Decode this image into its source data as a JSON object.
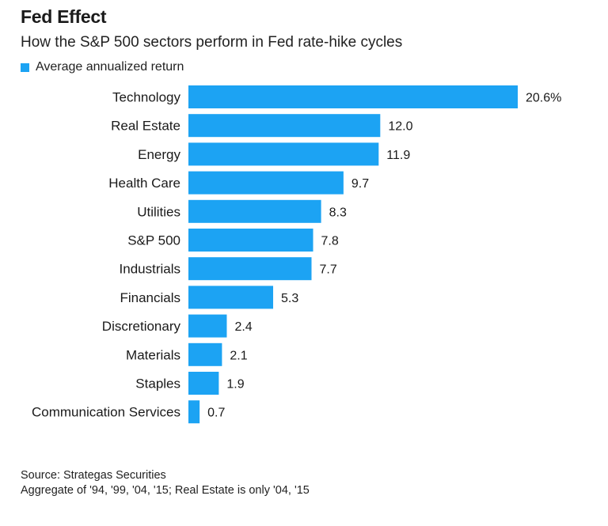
{
  "header": {
    "title": "Fed Effect",
    "subtitle": "How the S&P 500 sectors perform in Fed rate-hike cycles"
  },
  "legend": {
    "label": "Average annualized return"
  },
  "colors": {
    "bar": "#1ca3f3",
    "text": "#1a1a1a"
  },
  "chart_data": {
    "type": "bar",
    "orientation": "horizontal",
    "categories": [
      "Technology",
      "Real Estate",
      "Energy",
      "Health Care",
      "Utilities",
      "S&P 500",
      "Industrials",
      "Financials",
      "Discretionary",
      "Materials",
      "Staples",
      "Communication Services"
    ],
    "series": [
      {
        "name": "Average annualized return",
        "values": [
          20.6,
          12.0,
          11.9,
          9.7,
          8.3,
          7.8,
          7.7,
          5.3,
          2.4,
          2.1,
          1.9,
          0.7
        ]
      }
    ],
    "value_labels": [
      "20.6%",
      "12.0",
      "11.9",
      "9.7",
      "8.3",
      "7.8",
      "7.7",
      "5.3",
      "2.4",
      "2.1",
      "1.9",
      "0.7"
    ],
    "xlim": [
      0,
      20.6
    ],
    "grid": false,
    "legend_position": "top-left"
  },
  "footer": {
    "source": "Source: Strategas Securities",
    "note": "Aggregate of '94, '99, '04, '15; Real Estate is only '04, '15"
  }
}
